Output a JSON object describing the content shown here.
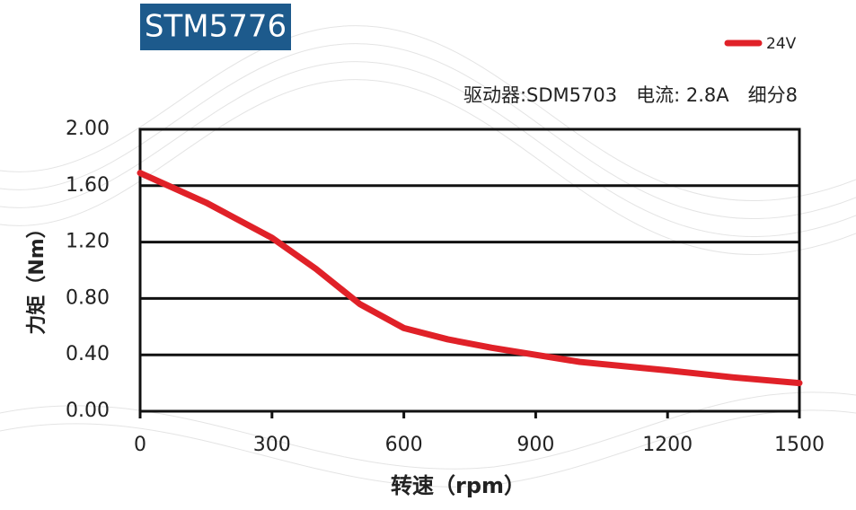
{
  "chart_data": {
    "type": "line",
    "title": "STM5776",
    "subtitle": "驱动器:SDM5703　电流: 2.8A　细分8",
    "x_label": "转速（rpm）",
    "y_label": "力矩（Nm）",
    "x": [
      0,
      150,
      300,
      400,
      500,
      600,
      700,
      800,
      900,
      1000,
      1200,
      1350,
      1500
    ],
    "series": [
      {
        "name": "24V",
        "color": "#e02128",
        "values": [
          1.69,
          1.48,
          1.23,
          1.01,
          0.76,
          0.59,
          0.51,
          0.45,
          0.4,
          0.35,
          0.29,
          0.24,
          0.2
        ]
      }
    ],
    "xlim": [
      0,
      1500
    ],
    "xticks": [
      0,
      300,
      600,
      900,
      1200,
      1500
    ],
    "ylim": [
      0,
      2
    ],
    "yticks": [
      {
        "value": 0,
        "label": "0.00"
      },
      {
        "value": 0.4,
        "label": "0.40"
      },
      {
        "value": 0.8,
        "label": "0.80"
      },
      {
        "value": 1.2,
        "label": "1.20"
      },
      {
        "value": 1.6,
        "label": "1.60"
      },
      {
        "value": 2,
        "label": "2.00"
      }
    ],
    "grid": true,
    "legend": "top-right"
  }
}
